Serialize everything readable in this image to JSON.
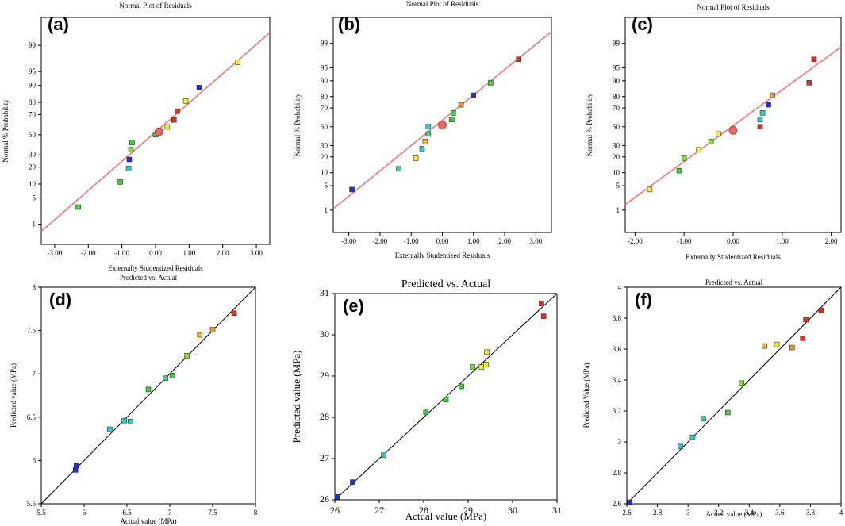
{
  "chart_data": [
    {
      "panel": "(a)",
      "type": "scatter",
      "title": "Normal Plot of Residuals",
      "xlabel": "Externally Studentized Residuals",
      "ylabel": "Normal % Probability",
      "xlim": [
        -3.4,
        3.4
      ],
      "xticks": [
        "-3.00",
        "-2.00",
        "-1.00",
        "0.00",
        "1.00",
        "2.00",
        "3.00"
      ],
      "yticks": [
        "1",
        "5",
        "10",
        "20",
        "30",
        "50",
        "70",
        "80",
        "90",
        "95",
        "99"
      ],
      "points": [
        {
          "x": -2.3,
          "y": 3,
          "color": "#44cc44"
        },
        {
          "x": -1.05,
          "y": 11,
          "color": "#44cc44"
        },
        {
          "x": -0.8,
          "y": 19,
          "color": "#33cccc"
        },
        {
          "x": -0.78,
          "y": 26,
          "color": "#2233cc"
        },
        {
          "x": -0.73,
          "y": 35,
          "color": "#88dd33"
        },
        {
          "x": -0.7,
          "y": 42,
          "color": "#44cc44"
        },
        {
          "x": 0.0,
          "y": 50,
          "color": "#44cc44"
        },
        {
          "x": 0.35,
          "y": 58,
          "color": "#eeee33"
        },
        {
          "x": 0.55,
          "y": 65,
          "color": "#dd3322"
        },
        {
          "x": 0.65,
          "y": 73,
          "color": "#dd3322"
        },
        {
          "x": 0.9,
          "y": 81,
          "color": "#eeee33"
        },
        {
          "x": 1.3,
          "y": 89,
          "color": "#2233cc"
        },
        {
          "x": 2.45,
          "y": 97,
          "color": "#eeee33"
        }
      ],
      "center": {
        "x": 0.1,
        "y": 53
      },
      "fit_line": [
        [
          -3.4,
          0.6
        ],
        [
          3.4,
          99.6
        ]
      ]
    },
    {
      "panel": "(b)",
      "type": "scatter",
      "title": "Normal Plot of Residuals",
      "xlabel": "Externally Studentized Residuals",
      "ylabel": "Normal % Probability",
      "xlim": [
        -3.5,
        3.5
      ],
      "xticks": [
        "-3.00",
        "-2.00",
        "-1.00",
        "0.00",
        "1.00",
        "2.00",
        "3.00"
      ],
      "yticks": [
        "1",
        "5",
        "10",
        "20",
        "30",
        "50",
        "70",
        "80",
        "90",
        "95",
        "99"
      ],
      "points": [
        {
          "x": -2.9,
          "y": 4,
          "color": "#2233cc"
        },
        {
          "x": -1.4,
          "y": 12,
          "color": "#44cc88"
        },
        {
          "x": -0.85,
          "y": 19,
          "color": "#eeee33"
        },
        {
          "x": -0.65,
          "y": 27,
          "color": "#33cccc"
        },
        {
          "x": -0.55,
          "y": 34,
          "color": "#eebb33"
        },
        {
          "x": -0.45,
          "y": 42,
          "color": "#44cc88"
        },
        {
          "x": -0.45,
          "y": 50,
          "color": "#33cccc"
        },
        {
          "x": 0.3,
          "y": 58,
          "color": "#44cc44"
        },
        {
          "x": 0.35,
          "y": 65,
          "color": "#44cc44"
        },
        {
          "x": 0.6,
          "y": 73,
          "color": "#ee9933"
        },
        {
          "x": 1.0,
          "y": 81,
          "color": "#2233cc"
        },
        {
          "x": 1.55,
          "y": 89,
          "color": "#44cc44"
        },
        {
          "x": 2.45,
          "y": 97,
          "color": "#dd3322"
        }
      ],
      "center": {
        "x": 0.0,
        "y": 52
      },
      "fit_line": [
        [
          -3.5,
          1.1
        ],
        [
          3.5,
          99.6
        ]
      ]
    },
    {
      "panel": "(c)",
      "type": "scatter",
      "title": "Normal Plot of Residuals",
      "xlabel": "Externally Studentized Residuals",
      "ylabel": "Normal % Probability",
      "xlim": [
        -2.2,
        2.2
      ],
      "xticks": [
        "-2.00",
        "-1.00",
        "0.00",
        "1.00",
        "2.00"
      ],
      "yticks": [
        "1",
        "5",
        "10",
        "20",
        "30",
        "50",
        "70",
        "80",
        "90",
        "95",
        "99"
      ],
      "points": [
        {
          "x": -1.7,
          "y": 4,
          "color": "#eeee33"
        },
        {
          "x": -1.1,
          "y": 11,
          "color": "#44cc44"
        },
        {
          "x": -1.0,
          "y": 19,
          "color": "#88dd33"
        },
        {
          "x": -0.7,
          "y": 26,
          "color": "#eeee33"
        },
        {
          "x": -0.45,
          "y": 34,
          "color": "#88dd33"
        },
        {
          "x": -0.3,
          "y": 42,
          "color": "#eeee33"
        },
        {
          "x": 0.55,
          "y": 50,
          "color": "#dd3322"
        },
        {
          "x": 0.55,
          "y": 58,
          "color": "#33cccc"
        },
        {
          "x": 0.6,
          "y": 65,
          "color": "#33cccc"
        },
        {
          "x": 0.72,
          "y": 73,
          "color": "#2233cc"
        },
        {
          "x": 0.8,
          "y": 81,
          "color": "#ee9933"
        },
        {
          "x": 1.55,
          "y": 89,
          "color": "#dd3322"
        },
        {
          "x": 1.65,
          "y": 97,
          "color": "#dd3322"
        }
      ],
      "center": {
        "x": 0.0,
        "y": 46
      },
      "fit_line": [
        [
          -2.2,
          1.5
        ],
        [
          2.2,
          98.7
        ]
      ]
    },
    {
      "panel": "(d)",
      "type": "scatter",
      "title": "Predicted vs. Actual",
      "xlabel": "Actual value (MPa)",
      "ylabel": "Predicted value (MPa)",
      "xlim": [
        5.5,
        8
      ],
      "ylim": [
        5.5,
        8
      ],
      "xticks": [
        "5.5",
        "6",
        "6.5",
        "7",
        "7.5",
        "8"
      ],
      "yticks": [
        "5.5",
        "6",
        "6.5",
        "7",
        "7.5",
        "8"
      ],
      "points": [
        {
          "x": 5.9,
          "y": 5.89,
          "color": "#2233cc"
        },
        {
          "x": 5.91,
          "y": 5.94,
          "color": "#2233cc"
        },
        {
          "x": 6.3,
          "y": 6.36,
          "color": "#33cccc"
        },
        {
          "x": 6.47,
          "y": 6.46,
          "color": "#33cccc"
        },
        {
          "x": 6.54,
          "y": 6.45,
          "color": "#33cccc"
        },
        {
          "x": 6.75,
          "y": 6.82,
          "color": "#44cc44"
        },
        {
          "x": 6.95,
          "y": 6.95,
          "color": "#44cc88"
        },
        {
          "x": 7.03,
          "y": 6.98,
          "color": "#44cc44"
        },
        {
          "x": 7.2,
          "y": 7.21,
          "color": "#88dd33"
        },
        {
          "x": 7.35,
          "y": 7.45,
          "color": "#eebb33"
        },
        {
          "x": 7.5,
          "y": 7.51,
          "color": "#ee9933"
        },
        {
          "x": 7.75,
          "y": 7.7,
          "color": "#dd3322"
        }
      ],
      "fit_line": [
        [
          5.5,
          5.5
        ],
        [
          8,
          8
        ]
      ]
    },
    {
      "panel": "(e)",
      "type": "scatter",
      "title": "Predicted vs. Actual",
      "xlabel": "Actual value (MPa)",
      "ylabel": "Predicted value (MPa)",
      "xlim": [
        26,
        31
      ],
      "ylim": [
        26,
        31
      ],
      "xticks": [
        "26",
        "27",
        "28",
        "29",
        "30",
        "31"
      ],
      "yticks": [
        "26",
        "27",
        "28",
        "29",
        "30",
        "31"
      ],
      "points": [
        {
          "x": 26.05,
          "y": 26.07,
          "color": "#2233cc"
        },
        {
          "x": 26.4,
          "y": 26.43,
          "color": "#2233cc"
        },
        {
          "x": 27.1,
          "y": 27.08,
          "color": "#33cccc"
        },
        {
          "x": 28.05,
          "y": 28.12,
          "color": "#44cc44"
        },
        {
          "x": 28.5,
          "y": 28.43,
          "color": "#44cc44"
        },
        {
          "x": 28.85,
          "y": 28.75,
          "color": "#44cc44"
        },
        {
          "x": 29.1,
          "y": 29.22,
          "color": "#88dd33"
        },
        {
          "x": 29.3,
          "y": 29.22,
          "color": "#eeee33"
        },
        {
          "x": 29.4,
          "y": 29.28,
          "color": "#eeee33"
        },
        {
          "x": 29.42,
          "y": 29.58,
          "color": "#eeee33"
        },
        {
          "x": 30.65,
          "y": 30.76,
          "color": "#dd3322"
        },
        {
          "x": 30.7,
          "y": 30.45,
          "color": "#dd3322"
        }
      ],
      "fit_line": [
        [
          26,
          26
        ],
        [
          31,
          31
        ]
      ]
    },
    {
      "panel": "(f)",
      "type": "scatter",
      "title": "Predicted vs. Actual",
      "xlabel": "Actual value (MPa)",
      "ylabel": "Predicted Value (MPa)",
      "xlim": [
        2.6,
        4
      ],
      "ylim": [
        2.6,
        4
      ],
      "xticks": [
        "2.6",
        "2.8",
        "3",
        "3.2",
        "3.4",
        "3.6",
        "3.8",
        "4"
      ],
      "yticks": [
        "2.6",
        "2.8",
        "3",
        "3.2",
        "3.4",
        "3.6",
        "3.8",
        "4"
      ],
      "points": [
        {
          "x": 2.62,
          "y": 2.61,
          "color": "#2233cc"
        },
        {
          "x": 2.95,
          "y": 2.97,
          "color": "#33cccc"
        },
        {
          "x": 3.03,
          "y": 3.03,
          "color": "#33cccc"
        },
        {
          "x": 3.1,
          "y": 3.15,
          "color": "#44cc88"
        },
        {
          "x": 3.26,
          "y": 3.19,
          "color": "#44cc44"
        },
        {
          "x": 3.35,
          "y": 3.38,
          "color": "#88dd33"
        },
        {
          "x": 3.5,
          "y": 3.62,
          "color": "#eebb33"
        },
        {
          "x": 3.58,
          "y": 3.63,
          "color": "#eeee33"
        },
        {
          "x": 3.68,
          "y": 3.61,
          "color": "#ee9933"
        },
        {
          "x": 3.75,
          "y": 3.67,
          "color": "#dd3322"
        },
        {
          "x": 3.77,
          "y": 3.79,
          "color": "#dd3322"
        },
        {
          "x": 3.87,
          "y": 3.85,
          "color": "#dd3322"
        }
      ],
      "fit_line": [
        [
          2.6,
          2.6
        ],
        [
          4,
          4
        ]
      ]
    }
  ]
}
